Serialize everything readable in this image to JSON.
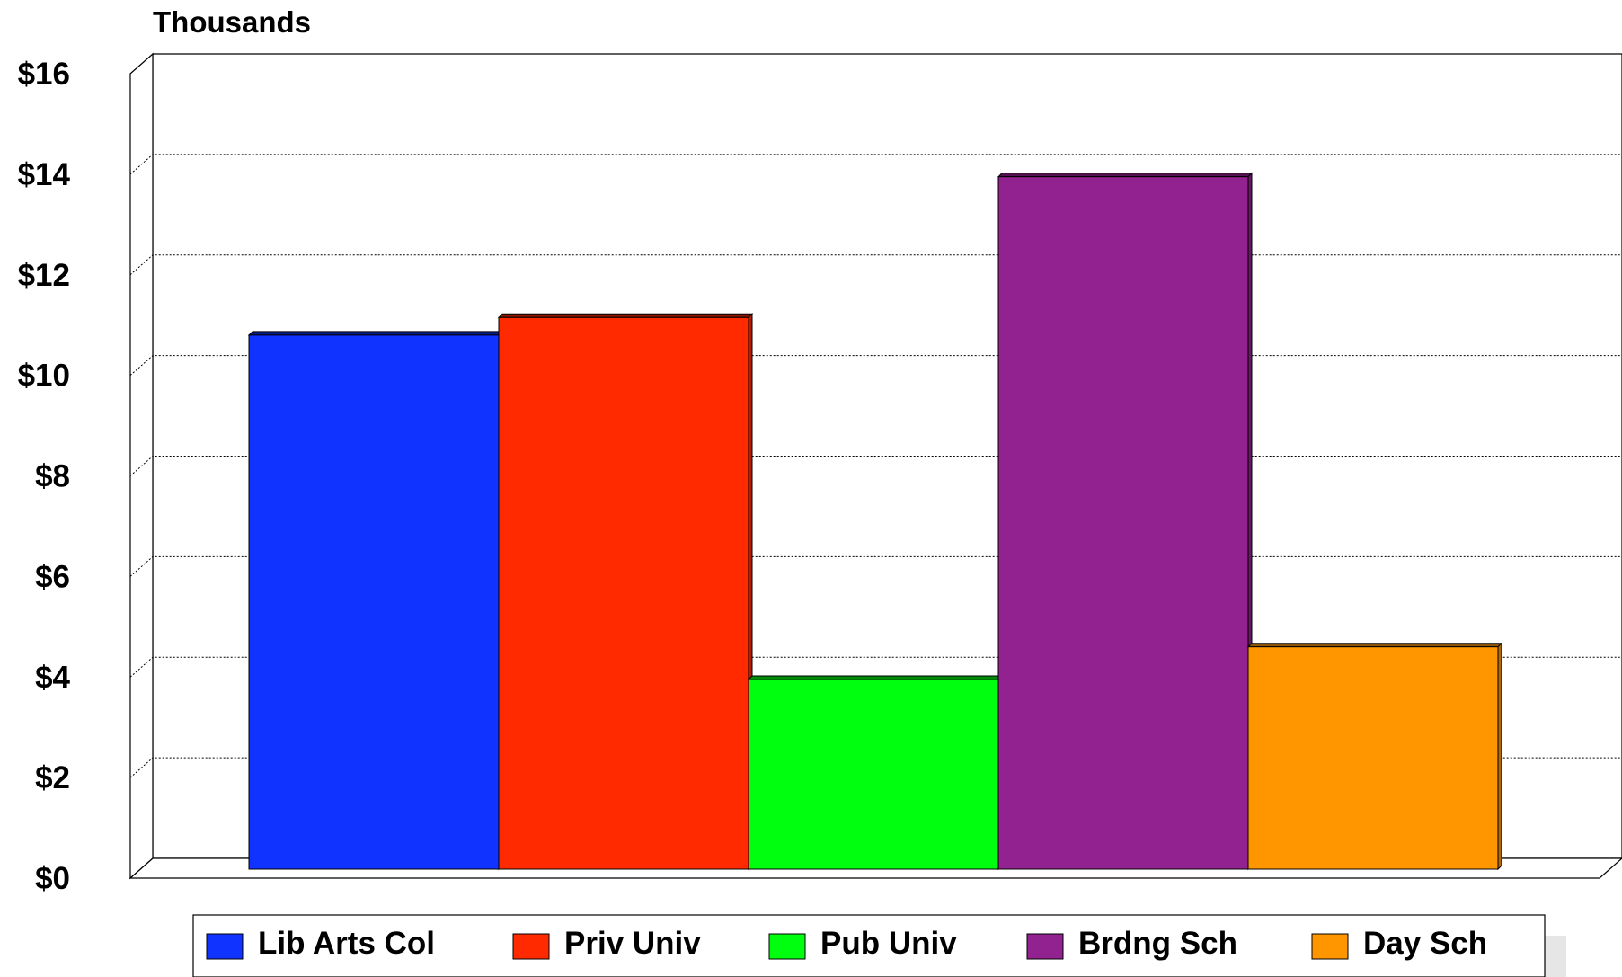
{
  "chart_data": {
    "type": "bar",
    "unit_label": "Thousands",
    "categories": [
      "Lib Arts Col",
      "Priv Univ",
      "Pub Univ",
      "Brdng Sch",
      "Day Sch"
    ],
    "values": [
      10.8,
      11.15,
      3.95,
      13.95,
      4.6
    ],
    "colors": [
      "#1033ff",
      "#ff2a00",
      "#00ff0f",
      "#912290",
      "#ff9600"
    ],
    "ylim": [
      0,
      16
    ],
    "yticks": [
      0,
      2,
      4,
      6,
      8,
      10,
      12,
      14,
      16
    ],
    "ytick_labels": [
      "$0",
      "$2",
      "$4",
      "$6",
      "$8",
      "$10",
      "$12",
      "$14",
      "$16"
    ],
    "grid": true,
    "legend_position": "bottom",
    "style": "3d"
  }
}
